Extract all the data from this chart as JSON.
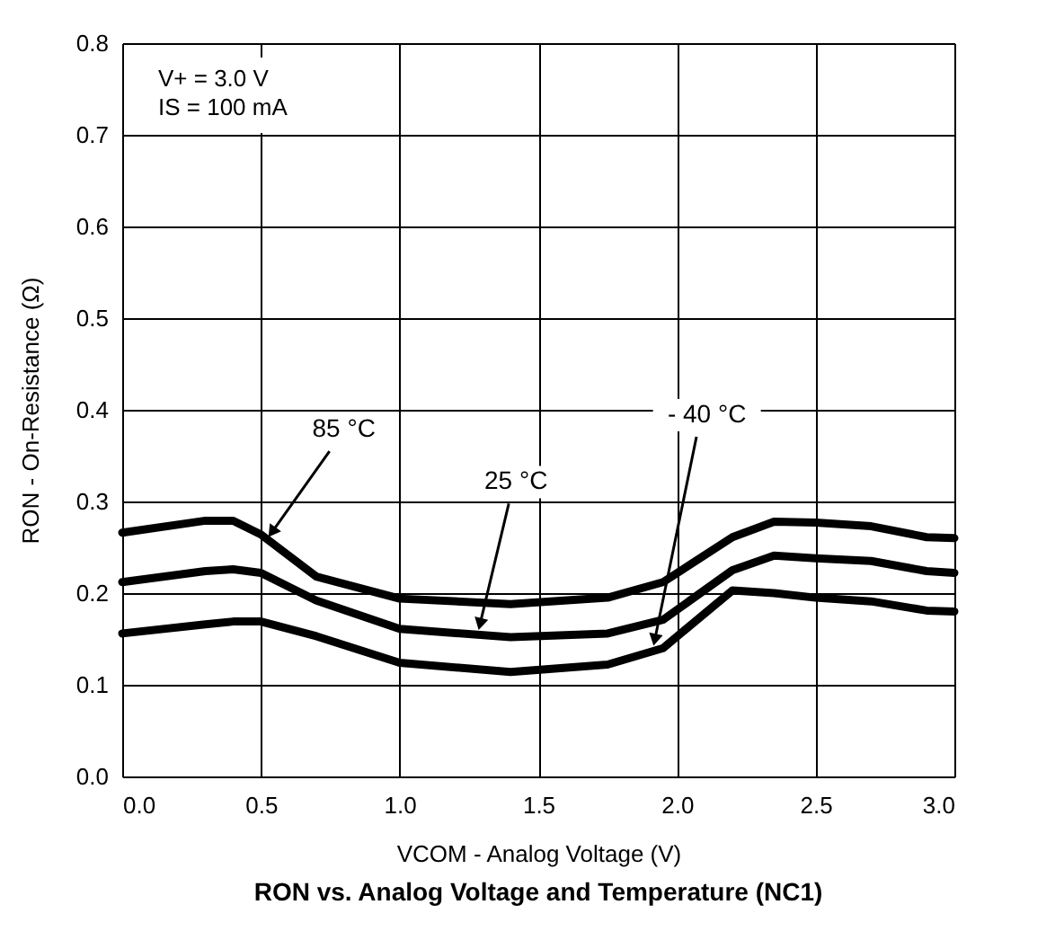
{
  "chart_data": {
    "type": "line",
    "title": "RON vs. Analog Voltage and Temperature (NC1)",
    "xlabel": "VCOM - Analog Voltage (V)",
    "ylabel": "RON - On-Resistance (Ω)",
    "x": [
      0.0,
      0.3,
      0.4,
      0.5,
      0.7,
      1.0,
      1.4,
      1.75,
      1.95,
      2.2,
      2.35,
      2.5,
      2.7,
      2.9,
      3.0
    ],
    "series": [
      {
        "name": "85 °C",
        "color": "#000000",
        "values": [
          0.266,
          0.279,
          0.279,
          0.264,
          0.218,
          0.194,
          0.188,
          0.195,
          0.212,
          0.261,
          0.278,
          0.277,
          0.273,
          0.261,
          0.26
        ]
      },
      {
        "name": "25 °C",
        "color": "#000000",
        "values": [
          0.212,
          0.224,
          0.226,
          0.222,
          0.192,
          0.161,
          0.152,
          0.156,
          0.171,
          0.225,
          0.241,
          0.238,
          0.235,
          0.224,
          0.222
        ]
      },
      {
        "name": "- 40 °C",
        "color": "#000000",
        "values": [
          0.156,
          0.166,
          0.169,
          0.169,
          0.153,
          0.124,
          0.114,
          0.122,
          0.14,
          0.203,
          0.2,
          0.195,
          0.191,
          0.181,
          0.18
        ]
      }
    ],
    "annotations": [
      "V+ = 3.0 V",
      "IS = 100 mA"
    ],
    "xlim": [
      0,
      3
    ],
    "ylim": [
      0,
      0.8
    ],
    "xticks": [
      {
        "value": 0,
        "label": "0.0"
      },
      {
        "value": 0.5,
        "label": "0.5"
      },
      {
        "value": 1,
        "label": "1.0"
      },
      {
        "value": 1.5,
        "label": "1.5"
      },
      {
        "value": 2,
        "label": "2.0"
      },
      {
        "value": 2.5,
        "label": "2.5"
      },
      {
        "value": 3,
        "label": "3.0"
      }
    ],
    "yticks": [
      {
        "value": 0,
        "label": "0.0"
      },
      {
        "value": 0.1,
        "label": "0.1"
      },
      {
        "value": 0.2,
        "label": "0.2"
      },
      {
        "value": 0.3,
        "label": "0.3"
      },
      {
        "value": 0.4,
        "label": "0.4"
      },
      {
        "value": 0.5,
        "label": "0.5"
      },
      {
        "value": 0.6,
        "label": "0.6"
      },
      {
        "value": 0.7,
        "label": "0.7"
      },
      {
        "value": 0.8,
        "label": "0.8"
      }
    ],
    "grid": true,
    "marker": "none",
    "line_style": "solid"
  }
}
